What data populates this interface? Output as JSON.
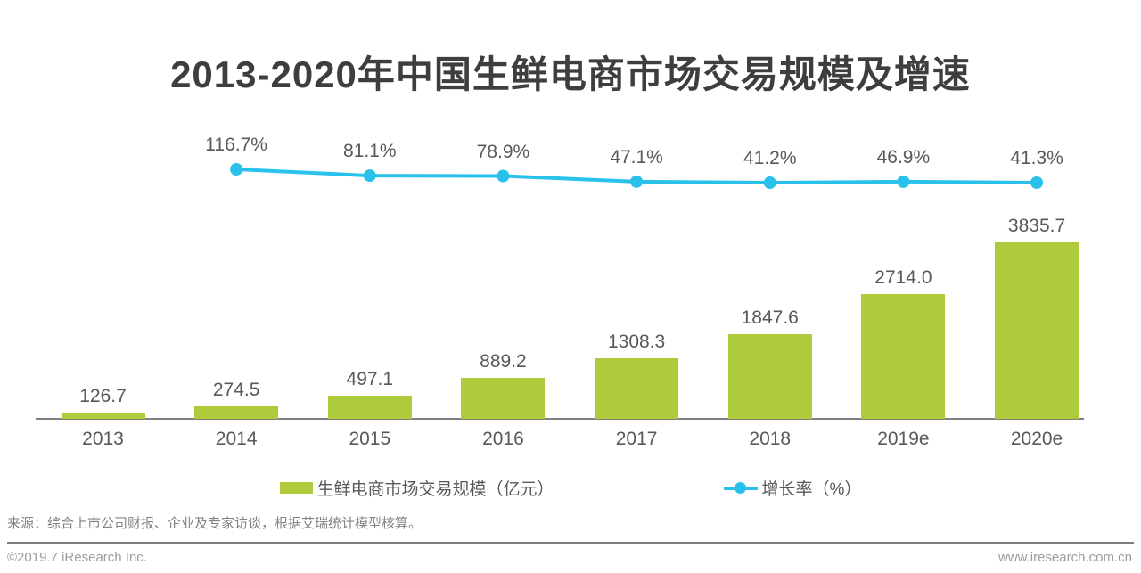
{
  "title": "2013-2020年中国生鲜电商市场交易规模及增速",
  "chart_data": {
    "type": "bar+line",
    "title": "2013-2020年中国生鲜电商市场交易规模及增速",
    "categories": [
      "2013",
      "2014",
      "2015",
      "2016",
      "2017",
      "2018",
      "2019e",
      "2020e"
    ],
    "series": [
      {
        "name": "生鲜电商市场交易规模（亿元）",
        "type": "bar",
        "values": [
          126.7,
          274.5,
          497.1,
          889.2,
          1308.3,
          1847.6,
          2714.0,
          3835.7
        ],
        "labels": [
          "126.7",
          "274.5",
          "497.1",
          "889.2",
          "1308.3",
          "1847.6",
          "2714.0",
          "3835.7"
        ]
      },
      {
        "name": "增长率（%）",
        "type": "line",
        "x_categories": [
          "2014",
          "2015",
          "2016",
          "2017",
          "2018",
          "2019e",
          "2020e"
        ],
        "values": [
          116.7,
          81.1,
          78.9,
          47.1,
          41.2,
          46.9,
          41.3
        ],
        "labels": [
          "116.7%",
          "81.1%",
          "78.9%",
          "47.1%",
          "41.2%",
          "46.9%",
          "41.3%"
        ]
      }
    ],
    "ylabel": "",
    "xlabel": "",
    "grid": false,
    "legend_position": "bottom",
    "value_labels_shown": true
  },
  "legend": {
    "bar_label": "生鲜电商市场交易规模（亿元）",
    "line_label": "增长率（%）"
  },
  "source_note": "来源：综合上市公司财报、企业及专家访谈，根据艾瑞统计模型核算。",
  "footer": {
    "copyright": "©2019.7 iResearch Inc.",
    "website": "www.iresearch.com.cn"
  },
  "colors": {
    "bar": "#aecb3c",
    "line": "#29c1ea",
    "title_text": "#3e3e3e",
    "label_text": "#595959",
    "muted_text": "#828282",
    "axis": "#808080"
  }
}
